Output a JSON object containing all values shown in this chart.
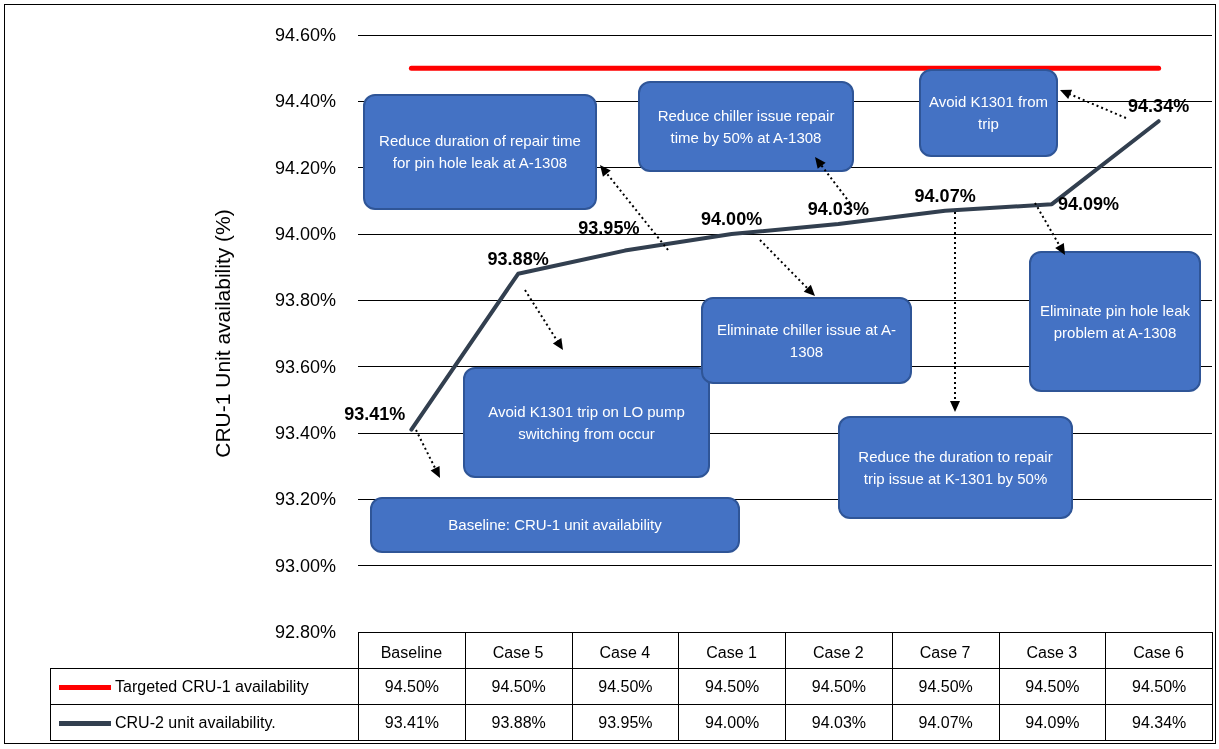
{
  "chart_data": {
    "type": "line",
    "ylabel": "CRU-1 Unit availability (%)",
    "categories": [
      "Baseline",
      "Case 5",
      "Case 4",
      "Case 1",
      "Case 2",
      "Case 7",
      "Case 3",
      "Case 6"
    ],
    "series": [
      {
        "name": "Targeted CRU-1 availability",
        "color": "#ff0000",
        "values": [
          94.5,
          94.5,
          94.5,
          94.5,
          94.5,
          94.5,
          94.5,
          94.5
        ],
        "value_labels": [
          "94.50%",
          "94.50%",
          "94.50%",
          "94.50%",
          "94.50%",
          "94.50%",
          "94.50%",
          "94.50%"
        ]
      },
      {
        "name": "CRU-2 unit availability.",
        "color": "#323f4f",
        "values": [
          93.41,
          93.88,
          93.95,
          94.0,
          94.03,
          94.07,
          94.09,
          94.34
        ],
        "value_labels": [
          "93.41%",
          "93.88%",
          "93.95%",
          "94.00%",
          "94.03%",
          "94.07%",
          "94.09%",
          "94.34%"
        ]
      }
    ],
    "ylim": [
      92.8,
      94.6
    ],
    "yticks": [
      {
        "value": 92.8,
        "label": "92.80%"
      },
      {
        "value": 93.0,
        "label": "93.00%"
      },
      {
        "value": 93.2,
        "label": "93.20%"
      },
      {
        "value": 93.4,
        "label": "93.40%"
      },
      {
        "value": 93.6,
        "label": "93.60%"
      },
      {
        "value": 93.8,
        "label": "93.80%"
      },
      {
        "value": 94.0,
        "label": "94.00%"
      },
      {
        "value": 94.2,
        "label": "94.20%"
      },
      {
        "value": 94.4,
        "label": "94.40%"
      },
      {
        "value": 94.6,
        "label": "94.60%"
      }
    ],
    "grid": "y",
    "legend": "bottom",
    "marker": "none",
    "line_style": "solid",
    "annotations": [
      "Baseline: CRU-1 unit availability",
      "Avoid K1301 trip on LO pump switching from occur",
      "Reduce duration of repair time for pin hole leak at A-1308",
      "Eliminate chiller issue at A-1308",
      "Reduce chiller issue repair time by 50% at A-1308",
      "Reduce the duration to repair trip issue at K-1301 by 50%",
      "Eliminate pin hole leak problem at A-1308",
      "Avoid K1301 from trip"
    ]
  }
}
